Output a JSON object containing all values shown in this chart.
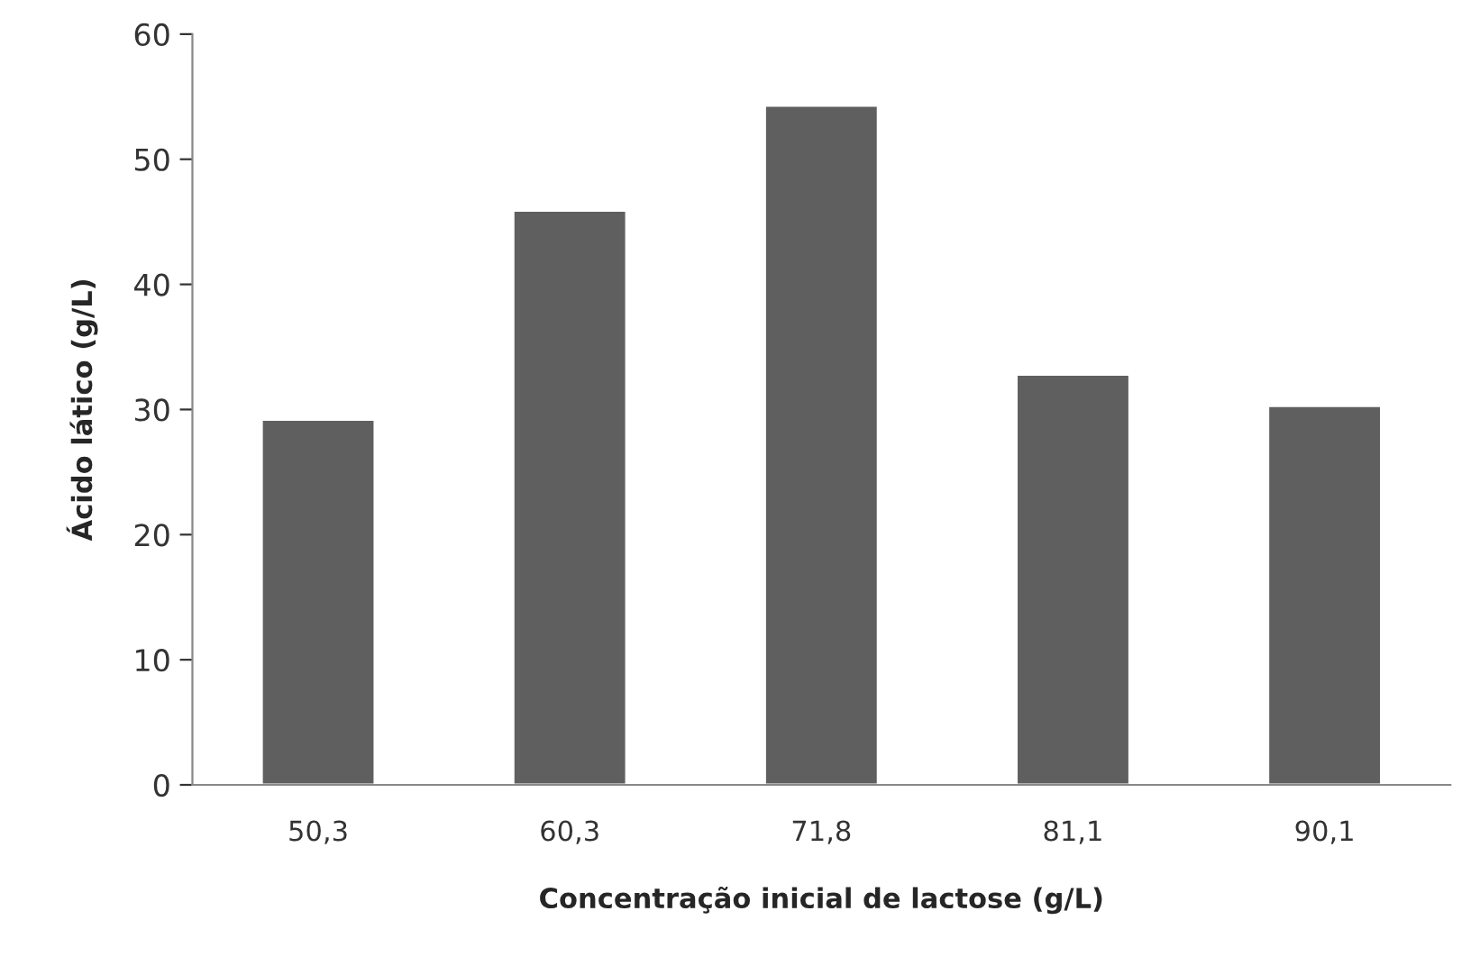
{
  "chart_data": {
    "type": "bar",
    "xlabel": "Concentração inicial de lactose (g/L)",
    "ylabel": "Ácido lático (g/L)",
    "categories": [
      "50,3",
      "60,3",
      "71,8",
      "81,1",
      "90,1"
    ],
    "values": [
      29.2,
      45.9,
      54.3,
      32.8,
      30.3
    ],
    "color": "#5f5f5f",
    "ylim": [
      0,
      60
    ],
    "yticks": [
      0,
      10,
      20,
      30,
      40,
      50,
      60
    ],
    "grid": false
  }
}
